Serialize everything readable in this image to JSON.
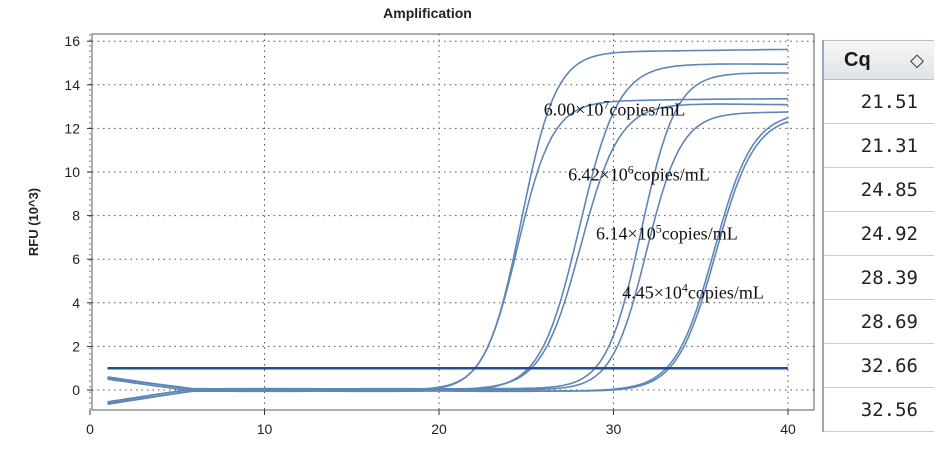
{
  "chart_data": {
    "type": "line",
    "title": "Amplification",
    "ylabel": "RFU (10^3)",
    "xlabel": "",
    "xlim": [
      0,
      40
    ],
    "ylim": [
      -1,
      16
    ],
    "x_ticks": [
      0,
      10,
      20,
      30,
      40
    ],
    "y_ticks": [
      0,
      2,
      4,
      6,
      8,
      10,
      12,
      14,
      16
    ],
    "grid": true,
    "threshold": 1.0,
    "series": [
      {
        "cq": 21.51,
        "plateau": 15.6,
        "slope": 1.0
      },
      {
        "cq": 21.31,
        "plateau": 13.3,
        "slope": 1.0
      },
      {
        "cq": 24.85,
        "plateau": 14.9,
        "slope": 0.9
      },
      {
        "cq": 24.92,
        "plateau": 13.1,
        "slope": 0.9
      },
      {
        "cq": 28.39,
        "plateau": 14.6,
        "slope": 1.0
      },
      {
        "cq": 28.69,
        "plateau": 12.8,
        "slope": 1.0
      },
      {
        "cq": 32.66,
        "plateau": 12.6,
        "slope": 0.9
      },
      {
        "cq": 32.56,
        "plateau": 12.7,
        "slope": 0.9
      }
    ],
    "annotations": [
      {
        "base": "6.00×10",
        "exp": "7",
        "unit": "copies/mL",
        "x": 26.0,
        "y": 12.6
      },
      {
        "base": "6.42×10",
        "exp": "6",
        "unit": "copies/mL",
        "x": 27.4,
        "y": 9.6
      },
      {
        "base": "6.14×10",
        "exp": "5",
        "unit": "copies/mL",
        "x": 29.0,
        "y": 6.9
      },
      {
        "base": "4.45×10",
        "exp": "4",
        "unit": "copies/mL",
        "x": 30.5,
        "y": 4.2
      }
    ]
  },
  "cq_table": {
    "header": "Cq",
    "sort_icon": "◇",
    "values": [
      "21.51",
      "21.31",
      "24.85",
      "24.92",
      "28.39",
      "28.69",
      "32.66",
      "32.56"
    ]
  }
}
